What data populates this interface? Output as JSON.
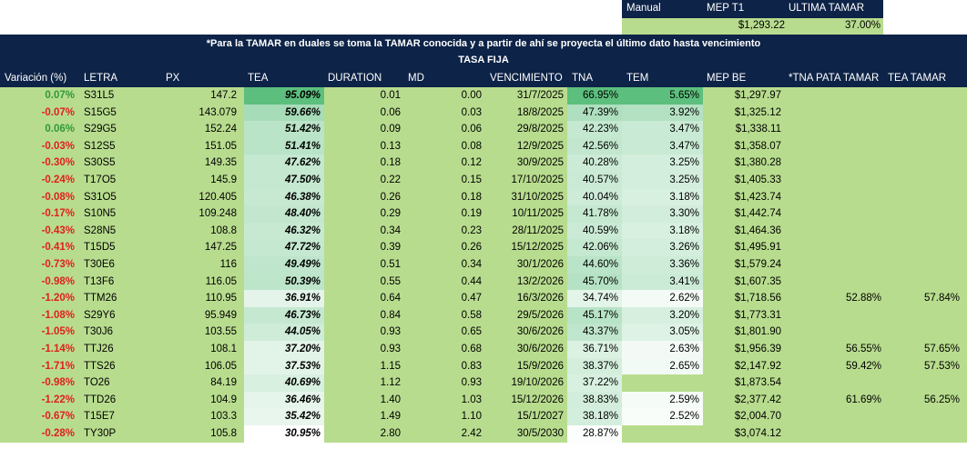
{
  "top": {
    "manual_label": "Manual",
    "mep_t1_label": "MEP T1",
    "ultima_tamar_label": "ULTIMA TAMAR",
    "mep_t1_value": "$1,293.22",
    "ultima_tamar_value": "37.00%"
  },
  "banner": {
    "note": "*Para la TAMAR en duales se toma la TAMAR conocida y a partir de ahí se proyecta el último dato hasta vencimiento",
    "section": "TASA FIJA"
  },
  "columns": [
    "Variación (%)",
    "LETRA",
    "PX",
    "TEA",
    "DURATION",
    "MD",
    "VENCIMIENTO",
    "TNA",
    "TEM",
    "MEP BE",
    "*TNA PATA TAMAR",
    "TEA TAMAR"
  ],
  "colors": {
    "navy": "#0d2347",
    "row_green": "#b8dc8e",
    "positive": "#2e9a3a",
    "negative": "#e0201b"
  },
  "rows": [
    {
      "var": "0.07%",
      "letra": "S31L5",
      "px": "147.2",
      "tea": "95.09%",
      "dur": "0.01",
      "md": "0.00",
      "venc": "31/7/2025",
      "tna": "66.95%",
      "tem": "5.65%",
      "mep": "$1,297.97",
      "tna_tamar": "",
      "tea_tamar": "",
      "heat": 1.0
    },
    {
      "var": "-0.07%",
      "letra": "S15G5",
      "px": "143.079",
      "tea": "59.66%",
      "dur": "0.06",
      "md": "0.03",
      "venc": "18/8/2025",
      "tna": "47.39%",
      "tem": "3.92%",
      "mep": "$1,325.12",
      "tna_tamar": "",
      "tea_tamar": "",
      "heat": 0.44
    },
    {
      "var": "0.06%",
      "letra": "S29G5",
      "px": "152.24",
      "tea": "51.42%",
      "dur": "0.09",
      "md": "0.06",
      "venc": "29/8/2025",
      "tna": "42.23%",
      "tem": "3.47%",
      "mep": "$1,338.11",
      "tna_tamar": "",
      "tea_tamar": "",
      "heat": 0.32
    },
    {
      "var": "-0.03%",
      "letra": "S12S5",
      "px": "151.05",
      "tea": "51.41%",
      "dur": "0.13",
      "md": "0.08",
      "venc": "12/9/2025",
      "tna": "42.56%",
      "tem": "3.47%",
      "mep": "$1,358.07",
      "tna_tamar": "",
      "tea_tamar": "",
      "heat": 0.32
    },
    {
      "var": "-0.30%",
      "letra": "S30S5",
      "px": "149.35",
      "tea": "47.62%",
      "dur": "0.18",
      "md": "0.12",
      "venc": "30/9/2025",
      "tna": "40.28%",
      "tem": "3.25%",
      "mep": "$1,380.28",
      "tna_tamar": "",
      "tea_tamar": "",
      "heat": 0.26
    },
    {
      "var": "-0.24%",
      "letra": "T17O5",
      "px": "145.9",
      "tea": "47.50%",
      "dur": "0.22",
      "md": "0.15",
      "venc": "17/10/2025",
      "tna": "40.57%",
      "tem": "3.25%",
      "mep": "$1,405.33",
      "tna_tamar": "",
      "tea_tamar": "",
      "heat": 0.26
    },
    {
      "var": "-0.08%",
      "letra": "S31O5",
      "px": "120.405",
      "tea": "46.38%",
      "dur": "0.26",
      "md": "0.18",
      "venc": "31/10/2025",
      "tna": "40.04%",
      "tem": "3.18%",
      "mep": "$1,423.74",
      "tna_tamar": "",
      "tea_tamar": "",
      "heat": 0.24
    },
    {
      "var": "-0.17%",
      "letra": "S10N5",
      "px": "109.248",
      "tea": "48.40%",
      "dur": "0.29",
      "md": "0.19",
      "venc": "10/11/2025",
      "tna": "41.78%",
      "tem": "3.30%",
      "mep": "$1,442.74",
      "tna_tamar": "",
      "tea_tamar": "",
      "heat": 0.27
    },
    {
      "var": "-0.43%",
      "letra": "S28N5",
      "px": "108.8",
      "tea": "46.32%",
      "dur": "0.34",
      "md": "0.23",
      "venc": "28/11/2025",
      "tna": "40.59%",
      "tem": "3.18%",
      "mep": "$1,464.36",
      "tna_tamar": "",
      "tea_tamar": "",
      "heat": 0.24
    },
    {
      "var": "-0.41%",
      "letra": "T15D5",
      "px": "147.25",
      "tea": "47.72%",
      "dur": "0.39",
      "md": "0.26",
      "venc": "15/12/2025",
      "tna": "42.06%",
      "tem": "3.26%",
      "mep": "$1,495.91",
      "tna_tamar": "",
      "tea_tamar": "",
      "heat": 0.26
    },
    {
      "var": "-0.73%",
      "letra": "T30E6",
      "px": "116",
      "tea": "49.49%",
      "dur": "0.51",
      "md": "0.34",
      "venc": "30/1/2026",
      "tna": "44.60%",
      "tem": "3.36%",
      "mep": "$1,579.24",
      "tna_tamar": "",
      "tea_tamar": "",
      "heat": 0.29
    },
    {
      "var": "-0.98%",
      "letra": "T13F6",
      "px": "116.05",
      "tea": "50.39%",
      "dur": "0.55",
      "md": "0.44",
      "venc": "13/2/2026",
      "tna": "45.70%",
      "tem": "3.41%",
      "mep": "$1,607.35",
      "tna_tamar": "",
      "tea_tamar": "",
      "heat": 0.3
    },
    {
      "var": "-1.20%",
      "letra": "TTM26",
      "px": "110.95",
      "tea": "36.91%",
      "dur": "0.64",
      "md": "0.47",
      "venc": "16/3/2026",
      "tna": "34.74%",
      "tem": "2.62%",
      "mep": "$1,718.56",
      "tna_tamar": "52.88%",
      "tea_tamar": "57.84%",
      "heat": 0.09
    },
    {
      "var": "-1.08%",
      "letra": "S29Y6",
      "px": "95.949",
      "tea": "46.73%",
      "dur": "0.84",
      "md": "0.58",
      "venc": "29/5/2026",
      "tna": "45.17%",
      "tem": "3.20%",
      "mep": "$1,773.31",
      "tna_tamar": "",
      "tea_tamar": "",
      "heat": 0.25
    },
    {
      "var": "-1.05%",
      "letra": "T30J6",
      "px": "103.55",
      "tea": "44.05%",
      "dur": "0.93",
      "md": "0.65",
      "venc": "30/6/2026",
      "tna": "43.37%",
      "tem": "3.05%",
      "mep": "$1,801.90",
      "tna_tamar": "",
      "tea_tamar": "",
      "heat": 0.2
    },
    {
      "var": "-1.14%",
      "letra": "TTJ26",
      "px": "108.1",
      "tea": "37.20%",
      "dur": "0.93",
      "md": "0.68",
      "venc": "30/6/2026",
      "tna": "36.71%",
      "tem": "2.63%",
      "mep": "$1,956.39",
      "tna_tamar": "56.55%",
      "tea_tamar": "57.65%",
      "heat": 0.1
    },
    {
      "var": "-1.71%",
      "letra": "TTS26",
      "px": "106.05",
      "tea": "37.53%",
      "dur": "1.15",
      "md": "0.83",
      "venc": "15/9/2026",
      "tna": "38.37%",
      "tem": "2.65%",
      "mep": "$2,147.92",
      "tna_tamar": "59.42%",
      "tea_tamar": "57.53%",
      "heat": 0.1
    },
    {
      "var": "-0.98%",
      "letra": "TO26",
      "px": "84.19",
      "tea": "40.69%",
      "dur": "1.12",
      "md": "0.93",
      "venc": "19/10/2026",
      "tna": "37.22%",
      "tem": "",
      "mep": "$1,873.54",
      "tna_tamar": "",
      "tea_tamar": "",
      "heat": 0.15
    },
    {
      "var": "-1.22%",
      "letra": "TTD26",
      "px": "104.9",
      "tea": "36.46%",
      "dur": "1.40",
      "md": "1.03",
      "venc": "15/12/2026",
      "tna": "38.83%",
      "tem": "2.59%",
      "mep": "$2,377.42",
      "tna_tamar": "61.69%",
      "tea_tamar": "56.25%",
      "heat": 0.08
    },
    {
      "var": "-0.67%",
      "letra": "T15E7",
      "px": "103.3",
      "tea": "35.42%",
      "dur": "1.49",
      "md": "1.10",
      "venc": "15/1/2027",
      "tna": "38.18%",
      "tem": "2.52%",
      "mep": "$2,004.70",
      "tna_tamar": "",
      "tea_tamar": "",
      "heat": 0.07
    },
    {
      "var": "-0.28%",
      "letra": "TY30P",
      "px": "105.8",
      "tea": "30.95%",
      "dur": "2.80",
      "md": "2.42",
      "venc": "30/5/2030",
      "tna": "28.87%",
      "tem": "",
      "mep": "$3,074.12",
      "tna_tamar": "",
      "tea_tamar": "",
      "heat": 0.0
    }
  ]
}
